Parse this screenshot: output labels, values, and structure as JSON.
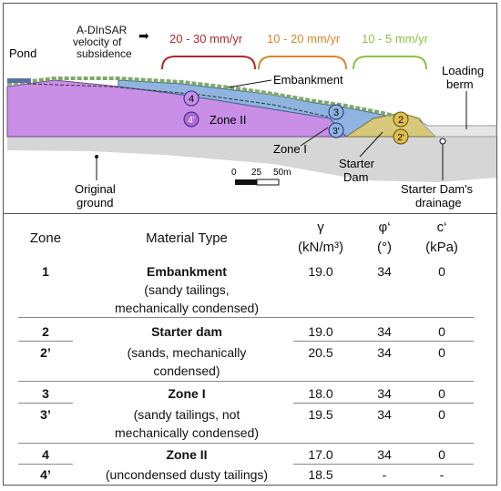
{
  "diagram": {
    "labels": {
      "pond": "Pond",
      "velocity": [
        "A-DInSAR",
        "velocity of",
        "subsidence"
      ],
      "arrow": "➡",
      "range_red": "20 - 30 mm/yr",
      "range_orange": "10 - 20 mm/yr",
      "range_green": "10 - 5 mm/yr",
      "embankment": "Embankment",
      "loading_berm": [
        "Loading",
        "berm"
      ],
      "zone_ii": "Zone II",
      "zone_i": "Zone I",
      "starter_dam": [
        "Starter",
        "Dam"
      ],
      "original_ground": [
        "Original",
        "ground"
      ],
      "starter_drainage": [
        "Starter Dam's",
        "drainage"
      ],
      "scale": [
        "0",
        "25",
        "50m"
      ]
    },
    "markers": [
      "4",
      "4'",
      "3",
      "3'",
      "2",
      "2'"
    ],
    "colors": {
      "zone_ii": "#c98ee6",
      "zone_i": "#8fb4e0",
      "starter_dam": "#d8c97a",
      "ground": "#d6d6d6",
      "embankment": "#7fa86a",
      "red": "#b2282d",
      "orange": "#d9862b",
      "green": "#8cc43f"
    }
  },
  "table": {
    "headers": {
      "zone": "Zone",
      "material": "Material Type",
      "gamma": [
        "γ",
        "(kN/m³)"
      ],
      "phi": [
        "φ‘",
        "(°)"
      ],
      "c": [
        "c‘",
        "(kPa)"
      ]
    },
    "rows": [
      {
        "zone": "1",
        "name": "Embankment",
        "desc": [
          "(sandy tailings,",
          "mechanically condensed)"
        ],
        "gamma": "19.0",
        "phi": "34",
        "c": "0"
      },
      {
        "zone": "2",
        "name": "Starter dam",
        "desc": [],
        "gamma": "19.0",
        "phi": "34",
        "c": "0"
      },
      {
        "zone": "2’",
        "name": "",
        "desc": [
          "(sands, mechanically",
          "condensed)"
        ],
        "gamma": "20.5",
        "phi": "34",
        "c": "0"
      },
      {
        "zone": "3",
        "name": "Zone I",
        "desc": [],
        "gamma": "18.0",
        "phi": "34",
        "c": "0"
      },
      {
        "zone": "3’",
        "name": "",
        "desc": [
          "(sandy tailings, not",
          "mechanically condensed)"
        ],
        "gamma": "19.5",
        "phi": "34",
        "c": "0"
      },
      {
        "zone": "4",
        "name": "Zone II",
        "desc": [],
        "gamma": "17.0",
        "phi": "34",
        "c": "0"
      },
      {
        "zone": "4’",
        "name": "",
        "desc": [
          "(uncondensed dusty tailings)"
        ],
        "gamma": "18.5",
        "phi": "-",
        "c": "-"
      }
    ]
  }
}
